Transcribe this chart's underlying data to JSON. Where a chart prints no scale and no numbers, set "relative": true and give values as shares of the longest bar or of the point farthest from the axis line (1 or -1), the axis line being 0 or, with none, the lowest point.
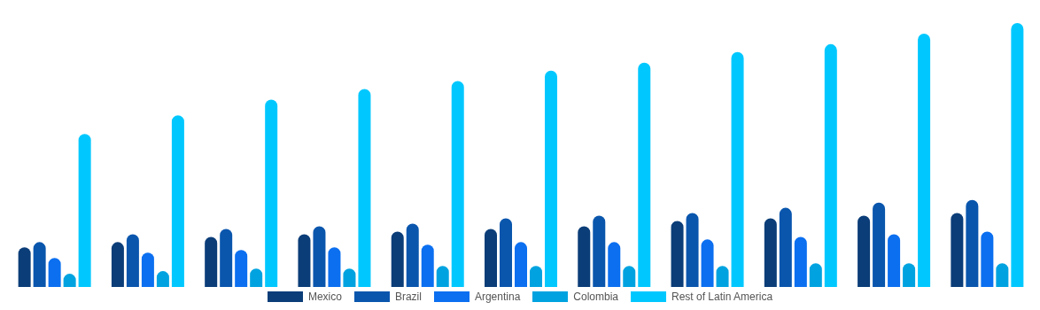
{
  "chart_data": {
    "type": "bar",
    "relative": true,
    "legend": "bottom",
    "categories": [
      null,
      null,
      null,
      null,
      null,
      null,
      null,
      null,
      null,
      null,
      null
    ],
    "series": [
      {
        "name": "Mexico",
        "color": "#0b3d78",
        "values": [
          0.15,
          0.17,
          0.19,
          0.2,
          0.21,
          0.22,
          0.23,
          0.25,
          0.26,
          0.27,
          0.28
        ]
      },
      {
        "name": "Brazil",
        "color": "#0a56ad",
        "values": [
          0.17,
          0.2,
          0.22,
          0.23,
          0.24,
          0.26,
          0.27,
          0.28,
          0.3,
          0.32,
          0.33
        ]
      },
      {
        "name": "Argentina",
        "color": "#0b6ff0",
        "values": [
          0.11,
          0.13,
          0.14,
          0.15,
          0.16,
          0.17,
          0.17,
          0.18,
          0.19,
          0.2,
          0.21
        ]
      },
      {
        "name": "Colombia",
        "color": "#00a3e0",
        "values": [
          0.05,
          0.06,
          0.07,
          0.07,
          0.08,
          0.08,
          0.08,
          0.08,
          0.09,
          0.09,
          0.09
        ]
      },
      {
        "name": "Rest of Latin America",
        "color": "#00c8ff",
        "values": [
          0.58,
          0.65,
          0.71,
          0.75,
          0.78,
          0.82,
          0.85,
          0.89,
          0.92,
          0.96,
          1
        ]
      }
    ]
  }
}
